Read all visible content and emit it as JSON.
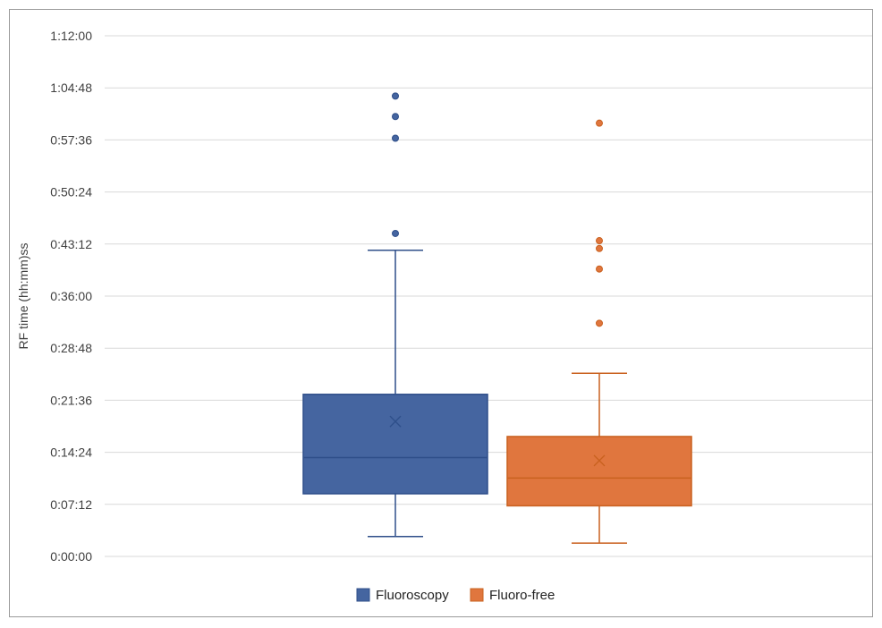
{
  "chart_data": {
    "type": "boxplot",
    "title": "",
    "xlabel": "",
    "ylabel": "RF time (hh:mm)ss",
    "y_unit": "hh:mm:ss",
    "ylim": [
      "0:00:00",
      "1:12:00"
    ],
    "yticks": [
      "0:00:00",
      "0:07:12",
      "0:14:24",
      "0:21:36",
      "0:28:48",
      "0:36:00",
      "0:43:12",
      "0:50:24",
      "0:57:36",
      "1:04:48",
      "1:12:00"
    ],
    "grid": true,
    "legend_position": "bottom",
    "series": [
      {
        "name": "Fluoroscopy",
        "color": "#4565a0",
        "min": "0:02:45",
        "q1": "0:08:40",
        "median": "0:13:40",
        "mean": "0:18:40",
        "q3": "0:22:25",
        "max": "0:42:20",
        "outliers": [
          "0:44:40",
          "0:57:50",
          "1:00:50",
          "1:03:40"
        ]
      },
      {
        "name": "Fluoro-free",
        "color": "#e0763e",
        "min": "0:01:50",
        "q1": "0:07:00",
        "median": "0:10:50",
        "mean": "0:13:15",
        "q3": "0:16:35",
        "max": "0:25:20",
        "outliers": [
          "0:32:15",
          "0:39:45",
          "0:42:35",
          "0:43:40",
          "0:59:55"
        ]
      }
    ]
  }
}
